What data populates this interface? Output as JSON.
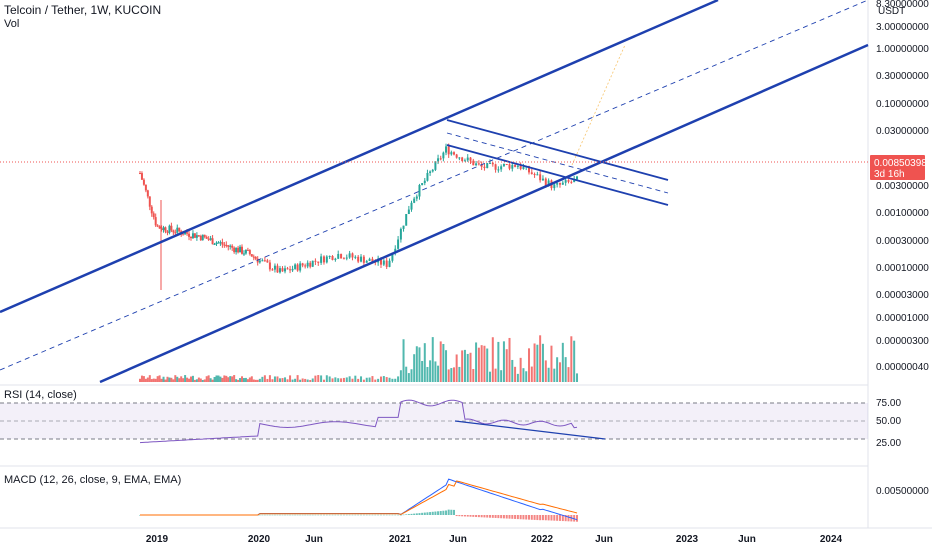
{
  "header": {
    "title": "Telcoin / Tether, 1W, KUCOIN",
    "volume_label": "Vol",
    "currency_label": "USDT"
  },
  "price_badge": {
    "price": "0.00850398",
    "countdown": "3d 16h"
  },
  "colors": {
    "up": "#26a69a",
    "down": "#ef5350",
    "channel": "#1e40af",
    "rsi_line": "#7e57c2",
    "macd_line": "#2962ff",
    "signal_line": "#ff6d00",
    "badge": "#ef5350"
  },
  "price_axis": {
    "ticks": [
      "8.30000000",
      "3.00000000",
      "1.00000000",
      "0.30000000",
      "0.10000000",
      "0.03000000",
      "0.00300000",
      "0.00100000",
      "0.00030000",
      "0.00010000",
      "0.00003000",
      "0.00001000",
      "0.00000300",
      "0.00000040"
    ]
  },
  "time_axis": {
    "ticks": [
      "2019",
      "2020",
      "Jun",
      "2021",
      "Jun",
      "2022",
      "Jun",
      "2023",
      "Jun",
      "2024"
    ]
  },
  "rsi": {
    "label": "RSI (14, close)",
    "levels": [
      "75.00",
      "50.00",
      "25.00"
    ]
  },
  "macd": {
    "label": "MACD (12, 26, close, 9, EMA, EMA)",
    "level": "0.00500000"
  },
  "chart_data": [
    {
      "type": "candlestick",
      "title": "Telcoin / Tether, 1W, KUCOIN",
      "yscale": "log",
      "x_range": [
        "2018-10",
        "2024-06"
      ],
      "series": [
        {
          "period": "2018-11",
          "close": 0.012
        },
        {
          "period": "2019-01",
          "close": 0.0008
        },
        {
          "period": "2019-06",
          "close": 0.0005
        },
        {
          "period": "2019-12",
          "close": 0.0002
        },
        {
          "period": "2020-03",
          "close": 8e-05
        },
        {
          "period": "2020-08",
          "close": 0.0002
        },
        {
          "period": "2020-12",
          "close": 0.00012
        },
        {
          "period": "2021-02",
          "close": 0.003
        },
        {
          "period": "2021-05",
          "close": 0.04
        },
        {
          "period": "2021-08",
          "close": 0.016
        },
        {
          "period": "2021-11",
          "close": 0.018
        },
        {
          "period": "2022-02",
          "close": 0.006
        },
        {
          "period": "2022-04",
          "close": 0.0085
        }
      ]
    },
    {
      "type": "bar",
      "title": "Vol"
    },
    {
      "type": "line",
      "title": "RSI (14, close)",
      "ylim": [
        0,
        100
      ],
      "levels": [
        75,
        50,
        25
      ]
    },
    {
      "type": "line",
      "title": "MACD (12, 26, close, 9, EMA, EMA)"
    }
  ]
}
